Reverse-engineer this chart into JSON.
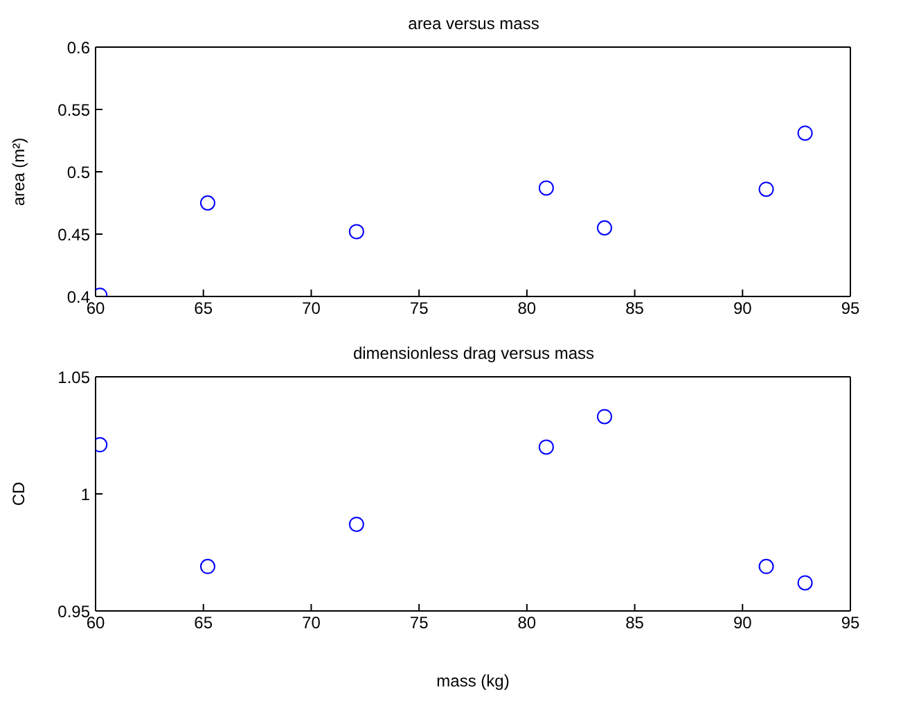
{
  "chart_data": [
    {
      "type": "scatter",
      "title": "area versus mass",
      "ylabel": "area (m²)",
      "x": [
        60.2,
        65.2,
        72.1,
        80.9,
        83.6,
        91.1,
        92.9
      ],
      "values": [
        0.401,
        0.475,
        0.452,
        0.487,
        0.455,
        0.486,
        0.531
      ],
      "color": "#0000ff",
      "marker": "circle",
      "xlim": [
        60,
        95
      ],
      "xticks": [
        60,
        65,
        70,
        75,
        80,
        85,
        90,
        95
      ],
      "ylim": [
        0.4,
        0.6
      ],
      "yticks": [
        0.4,
        0.45,
        0.5,
        0.55,
        0.6
      ]
    },
    {
      "type": "scatter",
      "title": "dimensionless drag versus mass",
      "xlabel": "mass (kg)",
      "ylabel": "CD",
      "x": [
        60.2,
        65.2,
        72.1,
        80.9,
        83.6,
        91.1,
        92.9
      ],
      "values": [
        1.021,
        0.969,
        0.987,
        1.02,
        1.033,
        0.969,
        0.962
      ],
      "color": "#0000ff",
      "marker": "circle",
      "xlim": [
        60,
        95
      ],
      "xticks": [
        60,
        65,
        70,
        75,
        80,
        85,
        90,
        95
      ],
      "ylim": [
        0.95,
        1.05
      ],
      "yticks": [
        0.95,
        1,
        1.05
      ]
    }
  ]
}
